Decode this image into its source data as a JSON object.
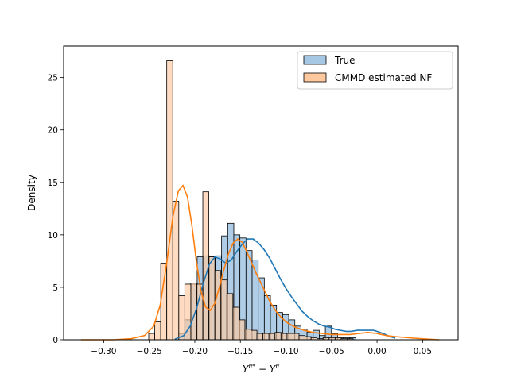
{
  "chart_data": {
    "type": "bar",
    "xlabel": "Y^π* − Y^π",
    "xlabel_parts": {
      "base1": "Y",
      "sup1": "π*",
      "minus": " − ",
      "base2": "Y",
      "sup2": "π"
    },
    "ylabel": "Density",
    "xlim": [
      -0.344,
      0.089
    ],
    "ylim": [
      0,
      28
    ],
    "xticks": [
      {
        "value": -0.3,
        "label": "−0.30"
      },
      {
        "value": -0.25,
        "label": "−0.25"
      },
      {
        "value": -0.2,
        "label": "−0.20"
      },
      {
        "value": -0.15,
        "label": "−0.15"
      },
      {
        "value": -0.1,
        "label": "−0.10"
      },
      {
        "value": -0.05,
        "label": "−0.05"
      },
      {
        "value": 0.0,
        "label": "0.00"
      },
      {
        "value": 0.05,
        "label": "0.05"
      }
    ],
    "yticks": [
      {
        "value": 0,
        "label": "0"
      },
      {
        "value": 5,
        "label": "5"
      },
      {
        "value": 10,
        "label": "10"
      },
      {
        "value": 15,
        "label": "15"
      },
      {
        "value": 20,
        "label": "20"
      },
      {
        "value": 25,
        "label": "25"
      }
    ],
    "legend_position": "top-right",
    "series": [
      {
        "name": "True",
        "color": "#1f77b4",
        "fill": "#a6c8e4",
        "bin_start": -0.2175,
        "bin_width": 0.0067,
        "values": [
          0.6,
          1.9,
          5.3,
          7.9,
          8.0,
          7.9,
          8.0,
          9.9,
          11.1,
          10.0,
          9.7,
          8.5,
          7.6,
          5.9,
          4.2,
          3.3,
          2.6,
          2.4,
          1.9,
          1.3,
          1.0,
          0.7,
          0.9,
          0.4,
          1.3,
          0.6,
          0.2,
          0.2,
          0.2
        ]
      },
      {
        "name": "CMMD estimated NF",
        "color": "#ff7f0e",
        "fill": "#ffc9a0",
        "bin_start": -0.2506,
        "bin_width": 0.0066,
        "values": [
          0.6,
          1.7,
          7.3,
          26.6,
          13.2,
          4.2,
          5.3,
          5.4,
          5.3,
          14.1,
          7.9,
          6.6,
          5.7,
          4.4,
          3.1,
          1.9,
          1.0,
          0.9,
          0.6,
          0.6,
          0.6,
          0.7,
          0.6,
          0.6,
          0.6,
          0.4,
          0.3,
          0.2,
          0.1,
          0.2,
          0.2,
          0.2,
          0.1,
          0.1
        ]
      }
    ],
    "kde": [
      {
        "name": "True",
        "color": "#1f77b4",
        "x": [
          -0.222,
          -0.212,
          -0.205,
          -0.198,
          -0.191,
          -0.184,
          -0.178,
          -0.172,
          -0.166,
          -0.16,
          -0.154,
          -0.148,
          -0.142,
          -0.136,
          -0.13,
          -0.124,
          -0.118,
          -0.112,
          -0.106,
          -0.1,
          -0.094,
          -0.088,
          -0.082,
          -0.076,
          -0.07,
          -0.064,
          -0.058,
          -0.052,
          -0.046,
          -0.04,
          -0.034,
          -0.028,
          -0.022,
          -0.016,
          -0.01,
          -0.004,
          0.002,
          0.008,
          0.014,
          0.02
        ],
        "y": [
          0.05,
          0.4,
          1.3,
          3.0,
          5.3,
          7.2,
          7.9,
          7.7,
          7.3,
          7.6,
          8.4,
          9.1,
          9.6,
          9.6,
          9.2,
          8.6,
          7.8,
          6.8,
          5.8,
          4.9,
          4.1,
          3.4,
          2.7,
          2.2,
          1.8,
          1.5,
          1.3,
          1.2,
          1.0,
          0.9,
          0.8,
          0.8,
          0.9,
          0.9,
          0.9,
          0.9,
          0.75,
          0.55,
          0.3,
          0.15
        ]
      },
      {
        "name": "CMMD estimated NF",
        "color": "#ff7f0e",
        "x": [
          -0.325,
          -0.29,
          -0.27,
          -0.255,
          -0.245,
          -0.238,
          -0.231,
          -0.224,
          -0.218,
          -0.213,
          -0.208,
          -0.203,
          -0.198,
          -0.193,
          -0.188,
          -0.183,
          -0.178,
          -0.173,
          -0.168,
          -0.163,
          -0.158,
          -0.153,
          -0.148,
          -0.143,
          -0.138,
          -0.133,
          -0.128,
          -0.123,
          -0.118,
          -0.113,
          -0.108,
          -0.1,
          -0.09,
          -0.08,
          -0.07,
          -0.06,
          -0.05,
          -0.04,
          -0.03,
          -0.02,
          -0.01,
          0.0,
          0.01,
          0.02,
          0.04,
          0.068
        ],
        "y": [
          0.0,
          0.0,
          0.1,
          0.4,
          1.3,
          3.3,
          7.2,
          11.8,
          14.2,
          14.7,
          13.6,
          10.8,
          7.3,
          4.5,
          3.1,
          2.8,
          3.5,
          5.0,
          6.7,
          8.2,
          9.2,
          9.6,
          9.3,
          8.4,
          7.4,
          6.4,
          5.5,
          4.6,
          3.7,
          3.0,
          2.4,
          1.7,
          1.2,
          0.9,
          0.7,
          0.6,
          0.5,
          0.5,
          0.5,
          0.6,
          0.7,
          0.6,
          0.4,
          0.3,
          0.15,
          0.0
        ]
      }
    ]
  }
}
